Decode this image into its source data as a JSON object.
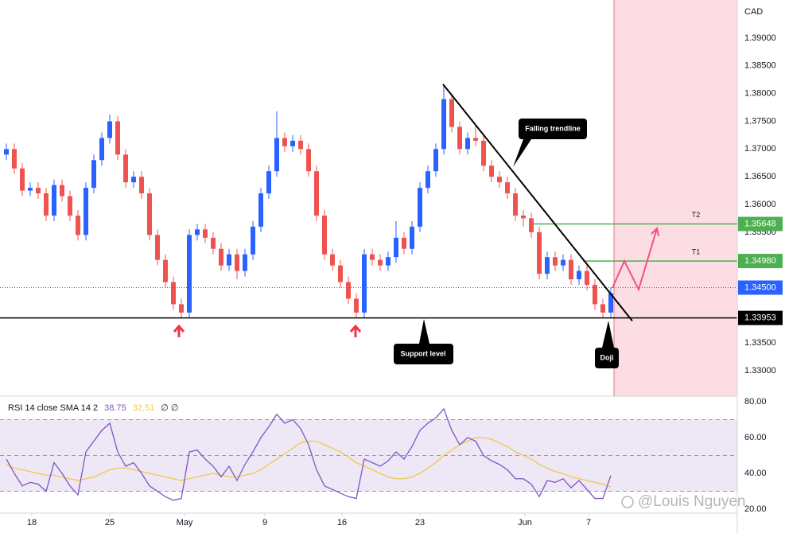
{
  "chart_data": [
    {
      "type": "candlestick",
      "currency": "CAD",
      "xlim": [
        -0.8,
        91.9
      ],
      "xticks": [
        {
          "value": 3.2,
          "label": "18"
        },
        {
          "value": 13,
          "label": "25"
        },
        {
          "value": 22.4,
          "label": "May"
        },
        {
          "value": 32.5,
          "label": "9"
        },
        {
          "value": 42.2,
          "label": "16"
        },
        {
          "value": 52,
          "label": "23"
        },
        {
          "value": 65.2,
          "label": "Jun"
        },
        {
          "value": 73.2,
          "label": "7"
        }
      ],
      "ylim": [
        1.32541,
        1.39689
      ],
      "yticks": [
        {
          "value": 1.39,
          "label": "1.39000"
        },
        {
          "value": 1.385,
          "label": "1.38500"
        },
        {
          "value": 1.38,
          "label": "1.38000"
        },
        {
          "value": 1.375,
          "label": "1.37500"
        },
        {
          "value": 1.37,
          "label": "1.37000"
        },
        {
          "value": 1.365,
          "label": "1.36500"
        },
        {
          "value": 1.36,
          "label": "1.36000"
        },
        {
          "value": 1.355,
          "label": "1.35500"
        },
        {
          "value": 1.35,
          "label": "1.35000"
        },
        {
          "value": 1.345,
          "label": "1.34500"
        },
        {
          "value": 1.34,
          "label": "1.34000"
        },
        {
          "value": 1.335,
          "label": "1.33500"
        },
        {
          "value": 1.33,
          "label": "1.33000"
        }
      ],
      "up_color": "#2962ff",
      "down_color": "#ef5350",
      "open": [
        1.369,
        1.37,
        1.3665,
        1.3625,
        1.363,
        1.362,
        1.358,
        1.3635,
        1.3615,
        1.358,
        1.3545,
        1.363,
        1.368,
        1.372,
        1.375,
        1.369,
        1.364,
        1.365,
        1.362,
        1.3545,
        1.35,
        1.346,
        1.342,
        1.3405,
        1.3545,
        1.3555,
        1.354,
        1.352,
        1.349,
        1.351,
        1.348,
        1.351,
        1.356,
        1.362,
        1.366,
        1.372,
        1.3705,
        1.3715,
        1.37,
        1.366,
        1.358,
        1.351,
        1.349,
        1.346,
        1.343,
        1.3405,
        1.351,
        1.35,
        1.349,
        1.3505,
        1.354,
        1.352,
        1.356,
        1.363,
        1.366,
        1.37,
        1.379,
        1.374,
        1.37,
        1.372,
        1.3715,
        1.367,
        1.365,
        1.364,
        1.362,
        1.358,
        1.3575,
        1.355,
        1.3475,
        1.3505,
        1.349,
        1.35,
        1.3465,
        1.348,
        1.3455,
        1.342,
        1.3405
      ],
      "high": [
        1.371,
        1.371,
        1.3675,
        1.364,
        1.364,
        1.363,
        1.3645,
        1.3645,
        1.3625,
        1.359,
        1.364,
        1.369,
        1.373,
        1.3762,
        1.376,
        1.37,
        1.366,
        1.366,
        1.363,
        1.3555,
        1.351,
        1.347,
        1.343,
        1.3555,
        1.3565,
        1.3565,
        1.355,
        1.353,
        1.352,
        1.352,
        1.352,
        1.357,
        1.363,
        1.367,
        1.3768,
        1.373,
        1.3725,
        1.3725,
        1.371,
        1.367,
        1.359,
        1.352,
        1.35,
        1.347,
        1.344,
        1.352,
        1.352,
        1.351,
        1.3515,
        1.357,
        1.355,
        1.357,
        1.364,
        1.367,
        1.371,
        1.3815,
        1.38,
        1.375,
        1.373,
        1.3745,
        1.3725,
        1.368,
        1.366,
        1.365,
        1.363,
        1.359,
        1.3585,
        1.356,
        1.3515,
        1.3515,
        1.351,
        1.351,
        1.349,
        1.349,
        1.3465,
        1.343,
        1.345
      ],
      "low": [
        1.368,
        1.3655,
        1.3615,
        1.3615,
        1.361,
        1.357,
        1.357,
        1.3605,
        1.357,
        1.3535,
        1.3535,
        1.362,
        1.367,
        1.371,
        1.368,
        1.363,
        1.363,
        1.361,
        1.3535,
        1.349,
        1.345,
        1.341,
        1.3395,
        1.3395,
        1.3535,
        1.353,
        1.351,
        1.348,
        1.348,
        1.3465,
        1.347,
        1.35,
        1.355,
        1.361,
        1.365,
        1.3695,
        1.3695,
        1.369,
        1.365,
        1.357,
        1.35,
        1.348,
        1.345,
        1.342,
        1.3395,
        1.3395,
        1.349,
        1.348,
        1.348,
        1.3495,
        1.351,
        1.351,
        1.355,
        1.362,
        1.365,
        1.369,
        1.373,
        1.369,
        1.369,
        1.3705,
        1.366,
        1.364,
        1.363,
        1.361,
        1.357,
        1.356,
        1.354,
        1.3465,
        1.3465,
        1.348,
        1.348,
        1.3455,
        1.3455,
        1.3445,
        1.341,
        1.3395,
        1.3395
      ],
      "close": [
        1.37,
        1.3665,
        1.3625,
        1.363,
        1.362,
        1.358,
        1.3635,
        1.3615,
        1.358,
        1.3545,
        1.363,
        1.368,
        1.372,
        1.375,
        1.369,
        1.364,
        1.365,
        1.362,
        1.3545,
        1.35,
        1.346,
        1.342,
        1.3405,
        1.3545,
        1.3555,
        1.354,
        1.352,
        1.349,
        1.351,
        1.348,
        1.351,
        1.356,
        1.362,
        1.366,
        1.372,
        1.3705,
        1.3715,
        1.37,
        1.366,
        1.358,
        1.351,
        1.349,
        1.346,
        1.343,
        1.3405,
        1.351,
        1.35,
        1.349,
        1.3505,
        1.354,
        1.352,
        1.356,
        1.363,
        1.366,
        1.37,
        1.379,
        1.374,
        1.37,
        1.372,
        1.3715,
        1.367,
        1.365,
        1.364,
        1.362,
        1.358,
        1.3575,
        1.355,
        1.3475,
        1.3505,
        1.349,
        1.35,
        1.3465,
        1.348,
        1.3455,
        1.342,
        1.3405,
        1.344
      ],
      "forecast_zone_start": 76.4,
      "forecast_zone_color": "#fcdde3",
      "current_price": {
        "value": 1.345,
        "label": "1.34500",
        "color": "#2962ff"
      },
      "support": {
        "value": 1.33953,
        "label": "1.33953",
        "color": "#000000",
        "annotation": "Support level"
      },
      "targets": [
        {
          "name": "T1",
          "value": 1.3498,
          "label": "1.34980",
          "start": 72.5,
          "color": "#4caf50"
        },
        {
          "name": "T2",
          "value": 1.35648,
          "label": "1.35648",
          "start": 66,
          "color": "#4caf50"
        }
      ],
      "trendline": {
        "x": [
          54.9,
          78.7
        ],
        "y": [
          1.3817,
          1.339
        ],
        "annotation": "Falling trendline"
      },
      "projection": {
        "x": [
          76.2,
          77.7,
          79.5,
          81.8
        ],
        "y": [
          1.34493,
          1.3498,
          1.34465,
          1.35569
        ],
        "color": "#f0508a"
      },
      "doji_annotation": "Doji",
      "watermark": "@Louis Nguyen"
    },
    {
      "type": "line",
      "title": "RSI 14 close SMA 14 2",
      "flags": "∅ ∅",
      "ylim": [
        17.8,
        83.1
      ],
      "yticks": [
        {
          "value": 80,
          "label": "80.00"
        },
        {
          "value": 60,
          "label": "60.00"
        },
        {
          "value": 40,
          "label": "40.00"
        },
        {
          "value": 20,
          "label": "20.00"
        }
      ],
      "bands": [
        30,
        50,
        70
      ],
      "band_color": "#ede7f6",
      "series": [
        {
          "color": "#7e57c2",
          "last_value_label": "38.75",
          "values": [
            48,
            40,
            33,
            35,
            34,
            30,
            46,
            40,
            33,
            28,
            52,
            58,
            64,
            68,
            52,
            44,
            46,
            40,
            33,
            30,
            27,
            25,
            26,
            52,
            53,
            48,
            44,
            38,
            44,
            36,
            45,
            52,
            60,
            66,
            73,
            68,
            70,
            65,
            56,
            42,
            33,
            31,
            29,
            27,
            26,
            48,
            46,
            44,
            47,
            52,
            48,
            55,
            64,
            68,
            71,
            76,
            64,
            56,
            60,
            58,
            50,
            47,
            45,
            42,
            37,
            37,
            34,
            27,
            36,
            35,
            37,
            32,
            36,
            31,
            26,
            26,
            38.75
          ]
        },
        {
          "color": "#f2c94c",
          "last_value_label": "32.51",
          "values": [
            45,
            43,
            42,
            41,
            40,
            39,
            39,
            38,
            37,
            36,
            37,
            38,
            40,
            42,
            43,
            43,
            42,
            41,
            40,
            39,
            38,
            37,
            36,
            37,
            38,
            39,
            40,
            39,
            38,
            38,
            39,
            40,
            42,
            45,
            48,
            51,
            54,
            57,
            58,
            58,
            56,
            54,
            52,
            49,
            46,
            44,
            42,
            40,
            38,
            37,
            37,
            38,
            40,
            43,
            46,
            50,
            53,
            56,
            58,
            60,
            60,
            59,
            57,
            55,
            52,
            50,
            48,
            45,
            43,
            41,
            40,
            38,
            37,
            36,
            35,
            34,
            32.51
          ]
        }
      ]
    }
  ]
}
